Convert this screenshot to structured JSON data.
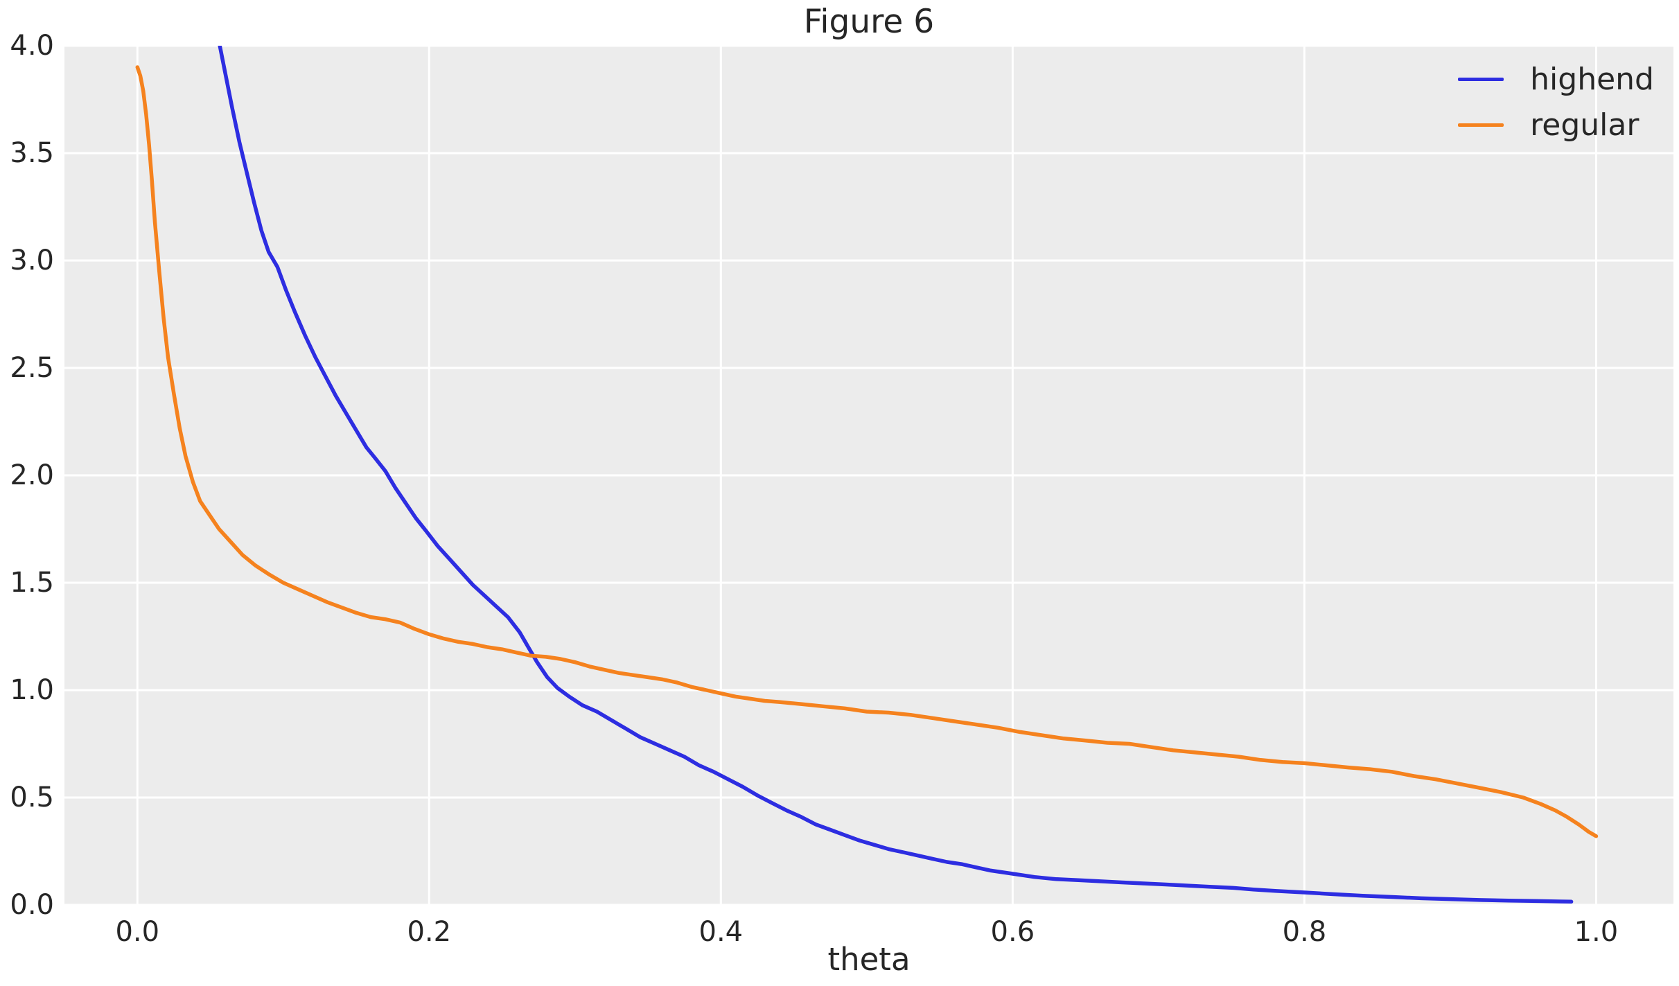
{
  "chart_data": {
    "type": "line",
    "title": "Figure 6",
    "xlabel": "theta",
    "ylabel": "",
    "xlim": [
      -0.05,
      1.053
    ],
    "ylim": [
      0,
      4
    ],
    "grid": true,
    "background": "#ececec",
    "grid_color": "#ffffff",
    "text_color": "#262626",
    "legend_position": "upper right",
    "x_ticks": [
      0.0,
      0.2,
      0.4,
      0.6,
      0.8,
      1.0
    ],
    "x_tick_labels": [
      "0.0",
      "0.2",
      "0.4",
      "0.6",
      "0.8",
      "1.0"
    ],
    "y_ticks": [
      0.0,
      0.5,
      1.0,
      1.5,
      2.0,
      2.5,
      3.0,
      3.5,
      4.0
    ],
    "y_tick_labels": [
      "0.0",
      "0.5",
      "1.0",
      "1.5",
      "2.0",
      "2.5",
      "3.0",
      "3.5",
      "4.0"
    ],
    "series": [
      {
        "name": "highend",
        "color": "#2d2de1",
        "points": [
          [
            0.0565,
            4.0
          ],
          [
            0.06,
            3.88
          ],
          [
            0.065,
            3.71
          ],
          [
            0.07,
            3.55
          ],
          [
            0.075,
            3.41
          ],
          [
            0.08,
            3.27
          ],
          [
            0.085,
            3.14
          ],
          [
            0.09,
            3.04
          ],
          [
            0.096,
            2.97
          ],
          [
            0.102,
            2.86
          ],
          [
            0.108,
            2.76
          ],
          [
            0.115,
            2.65
          ],
          [
            0.122,
            2.55
          ],
          [
            0.129,
            2.46
          ],
          [
            0.136,
            2.37
          ],
          [
            0.143,
            2.29
          ],
          [
            0.15,
            2.21
          ],
          [
            0.157,
            2.13
          ],
          [
            0.163,
            2.08
          ],
          [
            0.17,
            2.02
          ],
          [
            0.177,
            1.94
          ],
          [
            0.184,
            1.87
          ],
          [
            0.191,
            1.8
          ],
          [
            0.198,
            1.74
          ],
          [
            0.206,
            1.67
          ],
          [
            0.214,
            1.61
          ],
          [
            0.222,
            1.55
          ],
          [
            0.23,
            1.49
          ],
          [
            0.238,
            1.44
          ],
          [
            0.246,
            1.39
          ],
          [
            0.254,
            1.34
          ],
          [
            0.262,
            1.27
          ],
          [
            0.268,
            1.2
          ],
          [
            0.274,
            1.13
          ],
          [
            0.281,
            1.06
          ],
          [
            0.288,
            1.01
          ],
          [
            0.296,
            0.97
          ],
          [
            0.305,
            0.93
          ],
          [
            0.315,
            0.9
          ],
          [
            0.325,
            0.86
          ],
          [
            0.335,
            0.82
          ],
          [
            0.345,
            0.78
          ],
          [
            0.355,
            0.75
          ],
          [
            0.365,
            0.72
          ],
          [
            0.375,
            0.69
          ],
          [
            0.385,
            0.65
          ],
          [
            0.395,
            0.62
          ],
          [
            0.405,
            0.585
          ],
          [
            0.415,
            0.55
          ],
          [
            0.425,
            0.51
          ],
          [
            0.435,
            0.475
          ],
          [
            0.445,
            0.44
          ],
          [
            0.455,
            0.41
          ],
          [
            0.465,
            0.375
          ],
          [
            0.475,
            0.35
          ],
          [
            0.485,
            0.325
          ],
          [
            0.495,
            0.3
          ],
          [
            0.505,
            0.28
          ],
          [
            0.515,
            0.26
          ],
          [
            0.525,
            0.245
          ],
          [
            0.535,
            0.23
          ],
          [
            0.545,
            0.215
          ],
          [
            0.555,
            0.2
          ],
          [
            0.565,
            0.19
          ],
          [
            0.575,
            0.175
          ],
          [
            0.585,
            0.16
          ],
          [
            0.6,
            0.145
          ],
          [
            0.615,
            0.13
          ],
          [
            0.63,
            0.12
          ],
          [
            0.645,
            0.115
          ],
          [
            0.66,
            0.11
          ],
          [
            0.675,
            0.105
          ],
          [
            0.69,
            0.1
          ],
          [
            0.705,
            0.095
          ],
          [
            0.72,
            0.09
          ],
          [
            0.735,
            0.085
          ],
          [
            0.75,
            0.08
          ],
          [
            0.765,
            0.072
          ],
          [
            0.78,
            0.065
          ],
          [
            0.8,
            0.058
          ],
          [
            0.82,
            0.05
          ],
          [
            0.84,
            0.043
          ],
          [
            0.86,
            0.037
          ],
          [
            0.88,
            0.031
          ],
          [
            0.9,
            0.027
          ],
          [
            0.92,
            0.023
          ],
          [
            0.94,
            0.02
          ],
          [
            0.96,
            0.018
          ],
          [
            0.975,
            0.016
          ],
          [
            0.983,
            0.015
          ]
        ]
      },
      {
        "name": "regular",
        "color": "#f5821e",
        "points": [
          [
            0.0,
            3.9
          ],
          [
            0.002,
            3.86
          ],
          [
            0.004,
            3.79
          ],
          [
            0.006,
            3.68
          ],
          [
            0.008,
            3.54
          ],
          [
            0.01,
            3.37
          ],
          [
            0.012,
            3.18
          ],
          [
            0.015,
            2.95
          ],
          [
            0.018,
            2.73
          ],
          [
            0.021,
            2.55
          ],
          [
            0.025,
            2.38
          ],
          [
            0.029,
            2.22
          ],
          [
            0.033,
            2.09
          ],
          [
            0.038,
            1.97
          ],
          [
            0.043,
            1.88
          ],
          [
            0.049,
            1.82
          ],
          [
            0.056,
            1.75
          ],
          [
            0.064,
            1.69
          ],
          [
            0.072,
            1.63
          ],
          [
            0.081,
            1.58
          ],
          [
            0.09,
            1.54
          ],
          [
            0.1,
            1.5
          ],
          [
            0.11,
            1.47
          ],
          [
            0.12,
            1.44
          ],
          [
            0.13,
            1.41
          ],
          [
            0.14,
            1.385
          ],
          [
            0.15,
            1.36
          ],
          [
            0.16,
            1.34
          ],
          [
            0.17,
            1.33
          ],
          [
            0.18,
            1.315
          ],
          [
            0.19,
            1.285
          ],
          [
            0.2,
            1.26
          ],
          [
            0.21,
            1.24
          ],
          [
            0.22,
            1.225
          ],
          [
            0.23,
            1.215
          ],
          [
            0.24,
            1.2
          ],
          [
            0.25,
            1.19
          ],
          [
            0.26,
            1.175
          ],
          [
            0.27,
            1.16
          ],
          [
            0.28,
            1.155
          ],
          [
            0.29,
            1.145
          ],
          [
            0.3,
            1.13
          ],
          [
            0.31,
            1.11
          ],
          [
            0.32,
            1.095
          ],
          [
            0.33,
            1.08
          ],
          [
            0.34,
            1.07
          ],
          [
            0.35,
            1.06
          ],
          [
            0.36,
            1.05
          ],
          [
            0.37,
            1.035
          ],
          [
            0.38,
            1.015
          ],
          [
            0.39,
            1.0
          ],
          [
            0.4,
            0.985
          ],
          [
            0.41,
            0.97
          ],
          [
            0.42,
            0.96
          ],
          [
            0.43,
            0.95
          ],
          [
            0.44,
            0.945
          ],
          [
            0.455,
            0.935
          ],
          [
            0.47,
            0.925
          ],
          [
            0.485,
            0.915
          ],
          [
            0.5,
            0.9
          ],
          [
            0.515,
            0.895
          ],
          [
            0.53,
            0.885
          ],
          [
            0.545,
            0.87
          ],
          [
            0.56,
            0.855
          ],
          [
            0.575,
            0.84
          ],
          [
            0.59,
            0.825
          ],
          [
            0.605,
            0.805
          ],
          [
            0.62,
            0.79
          ],
          [
            0.635,
            0.775
          ],
          [
            0.65,
            0.765
          ],
          [
            0.665,
            0.755
          ],
          [
            0.68,
            0.75
          ],
          [
            0.695,
            0.735
          ],
          [
            0.71,
            0.72
          ],
          [
            0.725,
            0.71
          ],
          [
            0.74,
            0.7
          ],
          [
            0.755,
            0.69
          ],
          [
            0.77,
            0.675
          ],
          [
            0.785,
            0.665
          ],
          [
            0.8,
            0.66
          ],
          [
            0.815,
            0.65
          ],
          [
            0.83,
            0.64
          ],
          [
            0.845,
            0.632
          ],
          [
            0.86,
            0.62
          ],
          [
            0.875,
            0.6
          ],
          [
            0.89,
            0.585
          ],
          [
            0.905,
            0.565
          ],
          [
            0.92,
            0.545
          ],
          [
            0.935,
            0.525
          ],
          [
            0.95,
            0.5
          ],
          [
            0.962,
            0.47
          ],
          [
            0.972,
            0.44
          ],
          [
            0.98,
            0.41
          ],
          [
            0.988,
            0.375
          ],
          [
            0.995,
            0.34
          ],
          [
            1.0,
            0.32
          ]
        ]
      }
    ]
  }
}
